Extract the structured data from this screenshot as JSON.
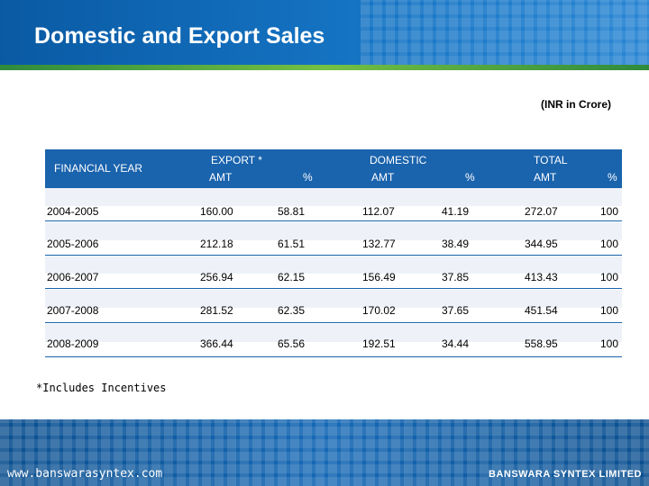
{
  "slide": {
    "title": "Domestic and Export Sales",
    "unit_note": "(INR in Crore)",
    "footnote": "*Includes Incentives"
  },
  "table": {
    "year_header": "FINANCIAL YEAR",
    "group_headers": [
      "EXPORT *",
      "DOMESTIC",
      "TOTAL"
    ],
    "sub_headers": [
      "AMT",
      "%",
      "AMT",
      "%",
      "AMT",
      "%"
    ],
    "rows": [
      {
        "year": "2004-2005",
        "cells": [
          "160.00",
          "58.81",
          "112.07",
          "41.19",
          "272.07",
          "100"
        ]
      },
      {
        "year": "2005-2006",
        "cells": [
          "212.18",
          "61.51",
          "132.77",
          "38.49",
          "344.95",
          "100"
        ]
      },
      {
        "year": "2006-2007",
        "cells": [
          "256.94",
          "62.15",
          "156.49",
          "37.85",
          "413.43",
          "100"
        ]
      },
      {
        "year": "2007-2008",
        "cells": [
          "281.52",
          "62.35",
          "170.02",
          "37.65",
          "451.54",
          "100"
        ]
      },
      {
        "year": "2008-2009",
        "cells": [
          "366.44",
          "65.56",
          "192.51",
          "34.44",
          "558.95",
          "100"
        ]
      }
    ]
  },
  "footer": {
    "url": "www.banswarasyntex.com",
    "company": "BANSWARA SYNTEX LIMITED"
  },
  "colors": {
    "header_blue": "#1574c4",
    "accent_green": "#74c044",
    "table_head_blue": "#1a63ad"
  }
}
